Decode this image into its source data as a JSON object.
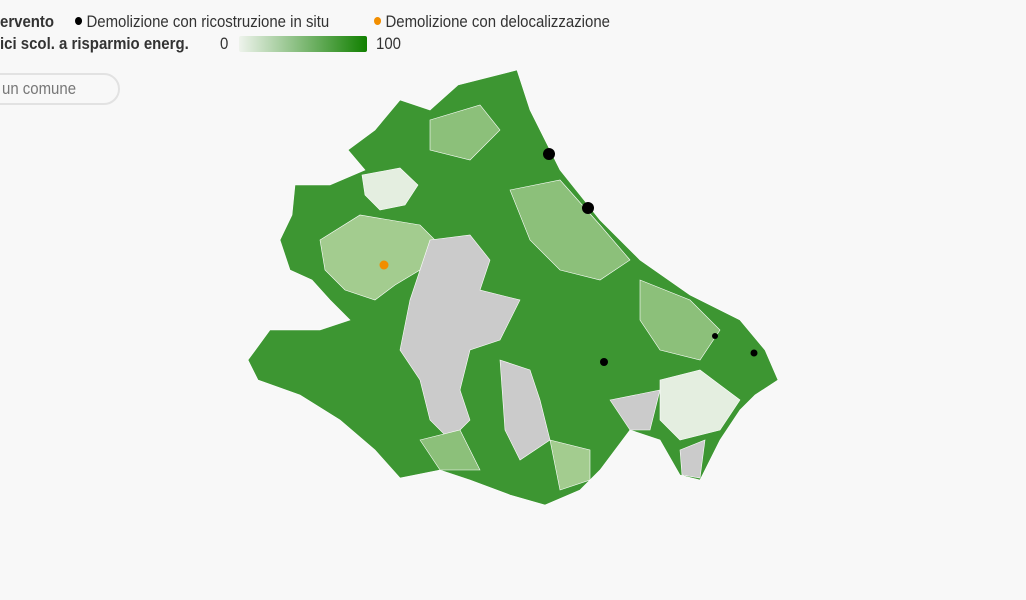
{
  "legend": {
    "type_title": "ervento",
    "type_items": [
      {
        "label": "Demolizione con ricostruzione in situ",
        "color": "#000000"
      },
      {
        "label": "Demolizione con delocalizzazione",
        "color": "#f28e00"
      }
    ],
    "scale_title": "ici scol. a risparmio energ.",
    "scale_min": "0",
    "scale_max": "100",
    "scale_colors": [
      "#eef3ec",
      "#118000"
    ],
    "no_data_color": "#cccccc"
  },
  "search": {
    "placeholder": "un comune"
  }
}
